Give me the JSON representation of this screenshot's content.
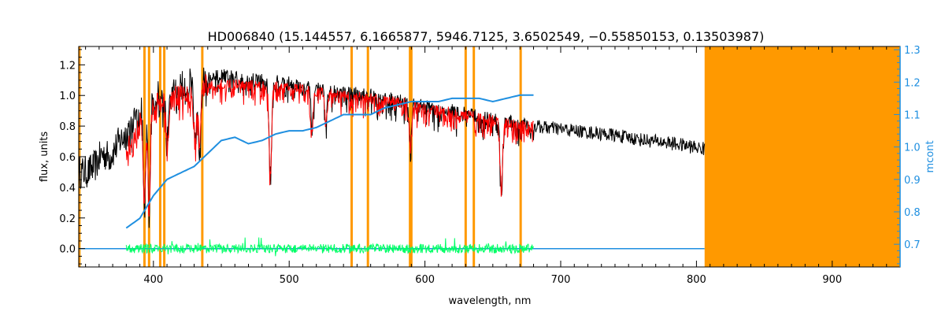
{
  "colors": {
    "spectrum": "#000000",
    "model": "#ff0000",
    "residuals": "#00ff66",
    "continuum": "#1f8fe0",
    "masks": "#ff9900",
    "axes": "#000000",
    "right_axis": "#1f8fe0"
  },
  "chart_data": {
    "type": "line",
    "title": "HD006840    (15.144557, 6.1665877, 5946.7125, 3.6502549, −0.55850153, 0.13503987)",
    "xlabel": "wavelength, nm",
    "ylabel": "flux, units",
    "y2label": "mcont",
    "xlim": [
      345,
      950
    ],
    "ylim": [
      -0.12,
      1.32
    ],
    "y2lim": [
      0.63,
      1.31
    ],
    "x_ticks": [
      400,
      500,
      600,
      700,
      800,
      900
    ],
    "x_tick_labels": [
      "400",
      "500",
      "600",
      "700",
      "800",
      "900"
    ],
    "y_ticks": [
      0.0,
      0.2,
      0.4,
      0.6,
      0.8,
      1.0,
      1.2
    ],
    "y_tick_labels": [
      "0.0",
      "0.2",
      "0.4",
      "0.6",
      "0.8",
      "1.0",
      "1.2"
    ],
    "y2_ticks": [
      0.7,
      0.8,
      0.9,
      1.0,
      1.1,
      1.2,
      1.3
    ],
    "y2_tick_labels": [
      "0.7",
      "0.8",
      "0.9",
      "1.0",
      "1.1",
      "1.2",
      "1.3"
    ],
    "grid": false,
    "series": [
      {
        "role": "observed spectrum",
        "color": "#000000",
        "x": [
          345,
          352,
          358,
          362,
          368,
          375,
          380,
          385,
          390,
          395,
          400,
          405,
          410,
          420,
          430,
          440,
          450,
          460,
          470,
          480,
          490,
          500,
          520,
          540,
          560,
          580,
          600,
          620,
          640,
          660,
          680,
          700,
          720,
          740,
          760,
          780,
          800,
          806
        ],
        "y": [
          0.5,
          0.5,
          0.55,
          0.62,
          0.6,
          0.7,
          0.75,
          0.82,
          0.9,
          0.95,
          0.98,
          1.0,
          0.97,
          1.05,
          1.08,
          1.12,
          1.13,
          1.12,
          1.11,
          1.1,
          1.09,
          1.08,
          1.05,
          1.02,
          1.0,
          0.97,
          0.93,
          0.9,
          0.86,
          0.83,
          0.8,
          0.78,
          0.76,
          0.74,
          0.71,
          0.69,
          0.66,
          0.65
        ]
      },
      {
        "role": "model fit",
        "color": "#ff0000",
        "x": [
          380,
          385,
          390,
          395,
          400,
          405,
          410,
          420,
          430,
          440,
          450,
          460,
          470,
          480,
          490,
          500,
          520,
          540,
          560,
          580,
          600,
          620,
          640,
          660,
          680
        ],
        "y": [
          0.62,
          0.72,
          0.82,
          0.9,
          0.95,
          0.97,
          0.95,
          1.0,
          1.03,
          1.07,
          1.08,
          1.07,
          1.07,
          1.06,
          1.06,
          1.05,
          1.03,
          1.0,
          0.98,
          0.96,
          0.92,
          0.89,
          0.86,
          0.82,
          0.8
        ]
      },
      {
        "role": "continuum (right axis)",
        "axis": "right",
        "color": "#1f8fe0",
        "x": [
          380,
          390,
          400,
          410,
          420,
          430,
          440,
          450,
          460,
          470,
          480,
          490,
          500,
          510,
          520,
          530,
          540,
          550,
          560,
          570,
          580,
          590,
          600,
          610,
          620,
          630,
          640,
          650,
          660,
          670,
          680
        ],
        "y": [
          0.75,
          0.78,
          0.85,
          0.9,
          0.92,
          0.94,
          0.98,
          1.02,
          1.03,
          1.01,
          1.02,
          1.04,
          1.05,
          1.05,
          1.06,
          1.08,
          1.1,
          1.1,
          1.1,
          1.12,
          1.13,
          1.14,
          1.14,
          1.14,
          1.15,
          1.15,
          1.15,
          1.14,
          1.15,
          1.16,
          1.16
        ]
      },
      {
        "role": "residuals",
        "color": "#00ff66",
        "x": [
          380,
          680
        ],
        "y": [
          0.0,
          0.0
        ],
        "scatter": 0.03
      },
      {
        "role": "residual baseline",
        "color": "#1f8fe0",
        "x": [
          345,
          806
        ],
        "y": [
          0.0,
          0.0
        ]
      }
    ],
    "absorption_lines": [
      {
        "x": 393.4,
        "depth": 0.7
      },
      {
        "x": 396.8,
        "depth": 0.7
      },
      {
        "x": 410.2,
        "depth": 0.3
      },
      {
        "x": 430.8,
        "depth": 0.35
      },
      {
        "x": 434.0,
        "depth": 0.4
      },
      {
        "x": 486.1,
        "depth": 0.55
      },
      {
        "x": 516.9,
        "depth": 0.25
      },
      {
        "x": 527.0,
        "depth": 0.2
      },
      {
        "x": 589.3,
        "depth": 0.3
      },
      {
        "x": 656.3,
        "depth": 0.55
      }
    ],
    "masked_lines": [
      345.5,
      393.4,
      396.8,
      405.0,
      408.0,
      436.0,
      546.0,
      558.0,
      589.0,
      590.0,
      630.0,
      636.0,
      670.5
    ],
    "masked_region": {
      "from": 806,
      "to": 950
    }
  }
}
